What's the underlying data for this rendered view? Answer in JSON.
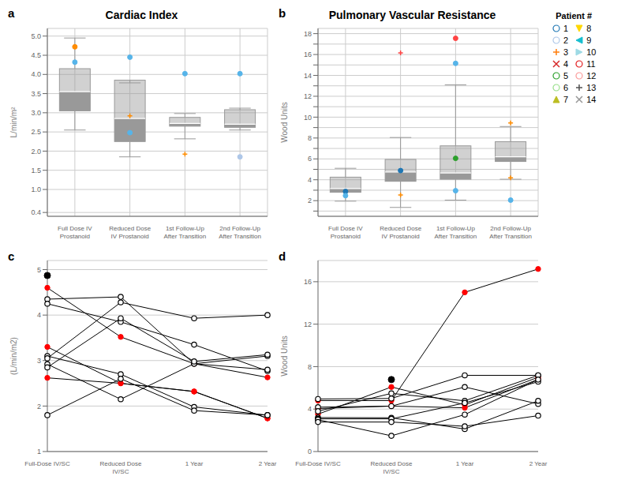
{
  "chart_data": [
    {
      "type": "box",
      "annotation": "a",
      "title": "Cardiac Index",
      "y_label": "L/min/m²",
      "categories": [
        "Full Dose IV\nProstanoid",
        "Reduced Dose\nIV Prostanoid",
        "1st Follow-Up\nAfter Transition",
        "2nd Follow-Up\nAfter Transition"
      ],
      "medians": [
        3.55,
        2.85,
        2.72,
        2.7
      ],
      "q1": [
        3.05,
        2.25,
        2.65,
        2.62
      ],
      "q3": [
        4.15,
        3.85,
        2.88,
        3.08
      ],
      "whislo": [
        2.55,
        1.85,
        2.32,
        2.55
      ],
      "whishi": [
        4.95,
        3.78,
        2.98,
        3.12
      ],
      "points": [
        {
          "category": "Full Dose IV\nProstanoid",
          "value": 4.72,
          "color": "#ff8c00",
          "marker": "filled_circle"
        },
        {
          "category": "Full Dose IV\nProstanoid",
          "value": 4.32,
          "color": "#56b4e9",
          "marker": "filled_circle"
        },
        {
          "category": "Reduced Dose\nIV Prostanoid",
          "value": 4.45,
          "color": "#56b4e9",
          "marker": "filled_circle"
        },
        {
          "category": "Reduced Dose\nIV Prostanoid",
          "value": 2.92,
          "color": "#ff8c00",
          "marker": "plus"
        },
        {
          "category": "Reduced Dose\nIV Prostanoid",
          "value": 2.48,
          "color": "#56b4e9",
          "marker": "filled_circle"
        },
        {
          "category": "1st Follow-Up\nAfter Transition",
          "value": 4.02,
          "color": "#56b4e9",
          "marker": "filled_circle"
        },
        {
          "category": "1st Follow-Up\nAfter Transition",
          "value": 1.92,
          "color": "#ff8c00",
          "marker": "plus"
        },
        {
          "category": "2nd Follow-Up\nAfter Transition",
          "value": 4.02,
          "color": "#56b4e9",
          "marker": "filled_circle"
        },
        {
          "category": "2nd Follow-Up\nAfter Transition",
          "value": 1.85,
          "color": "#aec7e8",
          "marker": "filled_circle"
        }
      ],
      "color": "#999999",
      "ylim": [
        0.3,
        5.2
      ],
      "yticks": [
        0.4,
        {
          "value": 1.0,
          "label": "1.0"
        },
        1.5,
        {
          "value": 2.0,
          "label": "2.0"
        },
        2.5,
        {
          "value": 3.0,
          "label": "3.0"
        },
        3.5,
        {
          "value": 4.0,
          "label": "4.0"
        },
        4.5,
        {
          "value": 5.0,
          "label": "5.0"
        }
      ],
      "grid": true
    },
    {
      "type": "box",
      "annotation": "b",
      "title": "Pulmonary Vascular Resistance",
      "y_label": "Wood Units",
      "categories": [
        "Full Dose IV\nProstanoid",
        "Reduced Dose\nIV Prostanoid",
        "1st Follow-Up\nAfter Transition",
        "2nd Follow-Up\nAfter Transition"
      ],
      "medians": [
        3.15,
        4.75,
        4.65,
        6.2
      ],
      "q1": [
        2.8,
        3.85,
        4.05,
        5.75
      ],
      "q3": [
        4.25,
        5.95,
        7.25,
        7.65
      ],
      "whislo": [
        1.95,
        1.35,
        2.05,
        4.05
      ],
      "whishi": [
        5.1,
        8.05,
        13.1,
        9.1
      ],
      "points": [
        {
          "category": "Reduced Dose\nIV Prostanoid",
          "value": 16.15,
          "color": "#ff4444",
          "marker": "plus"
        },
        {
          "category": "1st Follow-Up\nAfter Transition",
          "value": 17.55,
          "color": "#ff4444",
          "marker": "filled_circle"
        },
        {
          "category": "1st Follow-Up\nAfter Transition",
          "value": 15.15,
          "color": "#56b4e9",
          "marker": "filled_circle"
        },
        {
          "category": "2nd Follow-Up\nAfter Transition",
          "value": 9.45,
          "color": "#ff8c00",
          "marker": "plus"
        },
        {
          "category": "Full Dose IV\nProstanoid",
          "value": 2.88,
          "color": "#1f77b4",
          "marker": "filled_circle"
        },
        {
          "category": "Full Dose IV\nProstanoid",
          "value": 2.48,
          "color": "#56b4e9",
          "marker": "filled_circle"
        },
        {
          "category": "Reduced Dose\nIV Prostanoid",
          "value": 2.55,
          "color": "#ff8c00",
          "marker": "plus"
        },
        {
          "category": "1st Follow-Up\nAfter Transition",
          "value": 6.05,
          "color": "#2ca02c",
          "marker": "filled_circle"
        },
        {
          "category": "2nd Follow-Up\nAfter Transition",
          "value": 4.18,
          "color": "#ff8c00",
          "marker": "plus"
        },
        {
          "category": "1st Follow-Up\nAfter Transition",
          "value": 2.95,
          "color": "#56b4e9",
          "marker": "filled_circle"
        },
        {
          "category": "Reduced Dose\nIV Prostanoid",
          "value": 4.88,
          "color": "#1f77b4",
          "marker": "filled_circle"
        },
        {
          "category": "2nd Follow-Up\nAfter Transition",
          "value": 2.05,
          "color": "#56b4e9",
          "marker": "filled_circle"
        }
      ],
      "color": "#999999",
      "ylim": [
        0.5,
        18.5
      ],
      "yticks": [
        {
          "value": 1,
          "label": ""
        },
        2,
        {
          "value": 3,
          "label": ""
        },
        4,
        {
          "value": 5,
          "label": ""
        },
        6,
        {
          "value": 7,
          "label": ""
        },
        8,
        {
          "value": 9,
          "label": ""
        },
        10,
        {
          "value": 11,
          "label": ""
        },
        12,
        {
          "value": 13,
          "label": ""
        },
        14,
        {
          "value": 15,
          "label": ""
        },
        16,
        {
          "value": 17,
          "label": ""
        },
        18
      ],
      "grid": true,
      "legend": "upper right",
      "legend_title": "Patient #",
      "legend_entries": [
        {
          "name": "1",
          "marker": "open_circle",
          "color": "#1f77b4"
        },
        {
          "name": "2",
          "marker": "open_circle",
          "color": "#aec7e8"
        },
        {
          "name": "3",
          "marker": "plus",
          "color": "#ff7f0e"
        },
        {
          "name": "4",
          "marker": "x",
          "color": "#d62728"
        },
        {
          "name": "5",
          "marker": "open_circle",
          "color": "#2ca02c"
        },
        {
          "name": "6",
          "marker": "open_circle",
          "color": "#98df8a"
        },
        {
          "name": "7",
          "marker": "triangle_up",
          "color": "#bcbd22"
        },
        {
          "name": "8",
          "marker": "triangle_down",
          "color": "#ffd700"
        },
        {
          "name": "9",
          "marker": "triangle_left",
          "color": "#17becf"
        },
        {
          "name": "10",
          "marker": "triangle_right",
          "color": "#9edae5"
        },
        {
          "name": "11",
          "marker": "open_circle",
          "color": "#e31a1c"
        },
        {
          "name": "12",
          "marker": "open_circle",
          "color": "#fb9a99"
        },
        {
          "name": "13",
          "marker": "plus",
          "color": "#525252"
        },
        {
          "name": "14",
          "marker": "x",
          "color": "#969696"
        }
      ]
    },
    {
      "type": "line",
      "annotation": "c",
      "y_label": "(L/min/m2)",
      "categories": [
        "Full-Dose IV/SC",
        "Reduced Dose\nIV/SC",
        "1 Year",
        "2 Year"
      ],
      "color": "black",
      "series": [
        {
          "values": [
            4.6,
            3.52,
            2.93,
            2.63
          ],
          "color": "red",
          "marker": "filled_circle"
        },
        {
          "values": [
            3.3,
            2.5,
            2.32,
            1.73
          ],
          "color": "red",
          "marker": "filled_circle"
        },
        {
          "values": [
            2.62,
            2.5,
            2.32,
            1.73
          ],
          "color": "red",
          "marker": "filled_circle"
        },
        {
          "values": [
            4.35,
            4.4,
            2.93,
            3.1
          ],
          "color": "black",
          "marker": "open_circle"
        },
        {
          "values": [
            4.25,
            3.85,
            3.35,
            2.77
          ],
          "color": "black",
          "marker": "open_circle"
        },
        {
          "values": [
            3.1,
            2.7,
            1.98,
            1.8
          ],
          "color": "black",
          "marker": "open_circle"
        },
        {
          "values": [
            3.05,
            4.28,
            3.93,
            4.0
          ],
          "color": "black",
          "marker": "open_circle"
        },
        {
          "values": [
            2.92,
            2.15,
            2.93,
            2.8
          ],
          "color": "black",
          "marker": "open_circle"
        },
        {
          "values": [
            2.85,
            3.93,
            2.98,
            3.13
          ],
          "color": "black",
          "marker": "open_circle"
        },
        {
          "values": [
            1.8,
            2.6,
            1.9,
            1.8
          ],
          "color": "black",
          "marker": "open_circle"
        },
        {
          "type": "scatter",
          "values": [
            4.87,
            null,
            null,
            null
          ],
          "color": "black",
          "marker": "filled_circle"
        }
      ],
      "ylim": [
        1.0,
        5.2
      ],
      "yticks": [
        1,
        2,
        3,
        4,
        5
      ],
      "grid": "y"
    },
    {
      "type": "line",
      "annotation": "d",
      "y_label": "Wood Units",
      "categories": [
        "Full-Dose IV/SC",
        "Reduced Dose\nIV/SC",
        "1 Year",
        "2 Year"
      ],
      "color": "black",
      "series": [
        {
          "values": [
            4.8,
            4.8,
            15.0,
            17.2
          ],
          "color": "red",
          "marker": "filled_circle"
        },
        {
          "values": [
            4.05,
            4.28,
            4.12,
            6.8
          ],
          "color": "red",
          "marker": "filled_circle"
        },
        {
          "values": [
            3.52,
            6.08,
            4.4,
            7.0
          ],
          "color": "red",
          "marker": "filled_circle"
        },
        {
          "values": [
            4.95,
            5.0,
            7.18,
            7.18
          ],
          "color": "black",
          "marker": "open_circle"
        },
        {
          "values": [
            4.18,
            4.28,
            6.08,
            4.48
          ],
          "color": "black",
          "marker": "open_circle"
        },
        {
          "values": [
            3.8,
            5.48,
            4.78,
            7.18
          ],
          "color": "black",
          "marker": "open_circle"
        },
        {
          "values": [
            3.2,
            3.18,
            2.12,
            4.78
          ],
          "color": "black",
          "marker": "open_circle"
        },
        {
          "values": [
            3.08,
            3.08,
            4.58,
            6.58
          ],
          "color": "black",
          "marker": "open_circle"
        },
        {
          "values": [
            3.0,
            1.48,
            3.48,
            6.78
          ],
          "color": "black",
          "marker": "open_circle"
        },
        {
          "values": [
            2.78,
            2.78,
            2.38,
            3.38
          ],
          "color": "black",
          "marker": "open_circle"
        },
        {
          "type": "scatter",
          "values": [
            null,
            6.78,
            null,
            null
          ],
          "color": "black",
          "marker": "filled_circle"
        }
      ],
      "ylim": [
        0,
        18
      ],
      "yticks": [
        0,
        4,
        8,
        12,
        16
      ],
      "grid": "y"
    }
  ]
}
